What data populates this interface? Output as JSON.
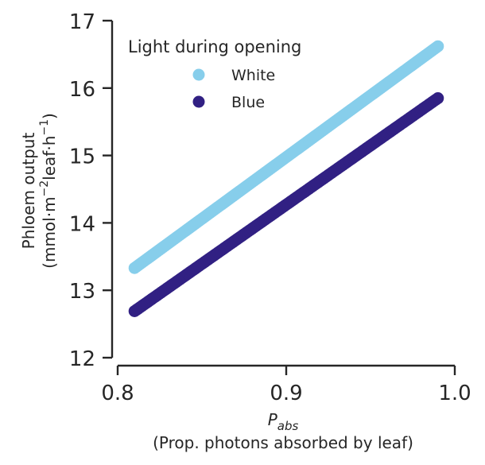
{
  "chart_data": {
    "type": "scatter",
    "xlabel_symbol": "P",
    "xlabel_subscript": "abs",
    "xlabel_line2": "(Prop. photons absorbed by leaf)",
    "ylabel_line1": "Phloem output",
    "ylabel_line2_parts": [
      "(mmol·m",
      "−2",
      "leaf·h",
      "−1",
      ")"
    ],
    "xlim": [
      0.8,
      1.0
    ],
    "ylim": [
      12,
      17
    ],
    "xticks": [
      0.8,
      0.9,
      1.0
    ],
    "xtick_labels": [
      "0.8",
      "0.9",
      "1.0"
    ],
    "yticks": [
      12,
      13,
      14,
      15,
      16,
      17
    ],
    "ytick_labels": [
      "12",
      "13",
      "14",
      "15",
      "16",
      "17"
    ],
    "grid": false,
    "legend": {
      "title": "Light during opening",
      "placement": "top-left"
    },
    "series": [
      {
        "name": "White",
        "color": "#87ceeb",
        "x": [
          0.81,
          0.99
        ],
        "y": [
          13.33,
          16.62
        ]
      },
      {
        "name": "Blue",
        "color": "#312083",
        "x": [
          0.81,
          0.99
        ],
        "y": [
          12.69,
          15.85
        ]
      }
    ]
  }
}
